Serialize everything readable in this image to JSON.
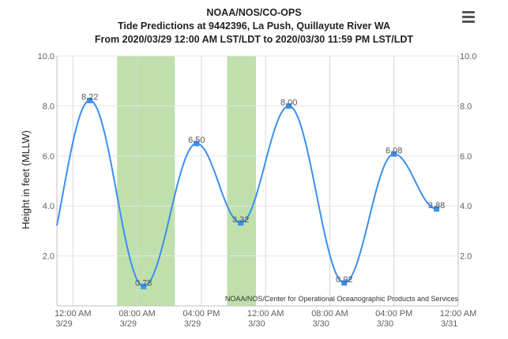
{
  "chart_data": {
    "type": "line",
    "title": "NOAA/NOS/CO-OPS",
    "subtitle": "Tide Predictions at 9442396, La Push, Quillayute River WA",
    "subtitle2": "From 2020/03/29 12:00 AM LST/LDT to 2020/03/30 11:59 PM LST/LDT",
    "ylabel": "Height in feet (MLLW)",
    "xlabel": "",
    "ylim": [
      0,
      10
    ],
    "yticks": [
      "2.0",
      "4.0",
      "6.0",
      "8.0",
      "10.0"
    ],
    "ytick_values": [
      2,
      4,
      6,
      8,
      10
    ],
    "xlim_hours": [
      -2,
      48
    ],
    "xticks": [
      {
        "hour": 0,
        "line1": "12:00 AM",
        "line2": "3/29"
      },
      {
        "hour": 8,
        "line1": "08:00 AM",
        "line2": "3/29"
      },
      {
        "hour": 16,
        "line1": "04:00 PM",
        "line2": "3/29"
      },
      {
        "hour": 24,
        "line1": "12:00 AM",
        "line2": "3/30"
      },
      {
        "hour": 32,
        "line1": "08:00 AM",
        "line2": "3/30"
      },
      {
        "hour": 40,
        "line1": "04:00 PM",
        "line2": "3/30"
      },
      {
        "hour": 48,
        "line1": "12:00 AM",
        "line2": "3/31"
      }
    ],
    "series": [
      {
        "color": "#3b8ff0",
        "points": [
          {
            "hour": 2.1,
            "value": 8.22,
            "label": "8.22"
          },
          {
            "hour": 8.8,
            "value": 0.78,
            "label": "0.78"
          },
          {
            "hour": 15.4,
            "value": 6.5,
            "label": "6.50"
          },
          {
            "hour": 20.9,
            "value": 3.32,
            "label": "3.32"
          },
          {
            "hour": 26.9,
            "value": 8.0,
            "label": "8.00"
          },
          {
            "hour": 33.8,
            "value": 0.92,
            "label": "0.92"
          },
          {
            "hour": 40.0,
            "value": 6.08,
            "label": "6.08"
          },
          {
            "hour": 45.3,
            "value": 3.88,
            "label": "3.88"
          }
        ]
      }
    ],
    "shaded_bands_hours": [
      [
        5.5,
        12.7
      ],
      [
        19.2,
        22.8
      ]
    ],
    "band_color": "#bfe0ac",
    "grid": true,
    "credit": "NOAA/NOS/Center for Operational Oceanographic Products and Services"
  }
}
